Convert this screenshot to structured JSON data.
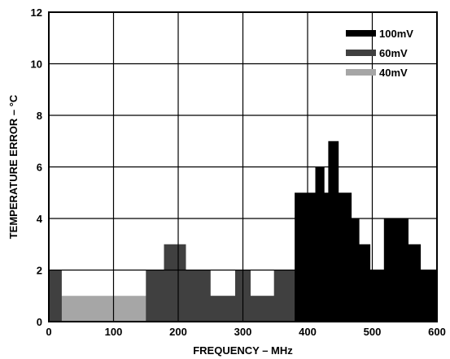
{
  "chart_data": {
    "type": "area",
    "xlabel": "FREQUENCY – MHz",
    "ylabel": "TEMPERATURE ERROR – °C",
    "xlim": [
      0,
      600
    ],
    "ylim": [
      0,
      12
    ],
    "xticks": [
      0,
      100,
      200,
      300,
      400,
      500,
      600
    ],
    "yticks": [
      0,
      2,
      4,
      6,
      8,
      10,
      12
    ],
    "grid": true,
    "legend_position": "top-right",
    "series": [
      {
        "name": "40mV",
        "color": "#a6a6a6",
        "x": [
          0,
          600
        ],
        "y": [
          1,
          1
        ]
      },
      {
        "name": "60mV",
        "color": "#404040",
        "x": [
          0,
          20,
          20,
          150,
          150,
          178,
          178,
          212,
          212,
          250,
          250,
          288,
          288,
          312,
          312,
          348,
          348,
          378,
          378,
          600
        ],
        "y": [
          2,
          2,
          0,
          0,
          2,
          2,
          3,
          3,
          2,
          2,
          1,
          1,
          2,
          2,
          1,
          1,
          2,
          2,
          2,
          2
        ]
      },
      {
        "name": "100mV",
        "color": "#000000",
        "x": [
          380,
          380,
          412,
          412,
          426,
          426,
          432,
          432,
          448,
          448,
          468,
          468,
          480,
          480,
          497,
          497,
          518,
          518,
          556,
          556,
          575,
          575,
          600
        ],
        "y": [
          0,
          5,
          5,
          6,
          6,
          5,
          5,
          7,
          7,
          5,
          5,
          4,
          4,
          3,
          3,
          2,
          2,
          4,
          4,
          3,
          3,
          2,
          2
        ]
      }
    ]
  }
}
